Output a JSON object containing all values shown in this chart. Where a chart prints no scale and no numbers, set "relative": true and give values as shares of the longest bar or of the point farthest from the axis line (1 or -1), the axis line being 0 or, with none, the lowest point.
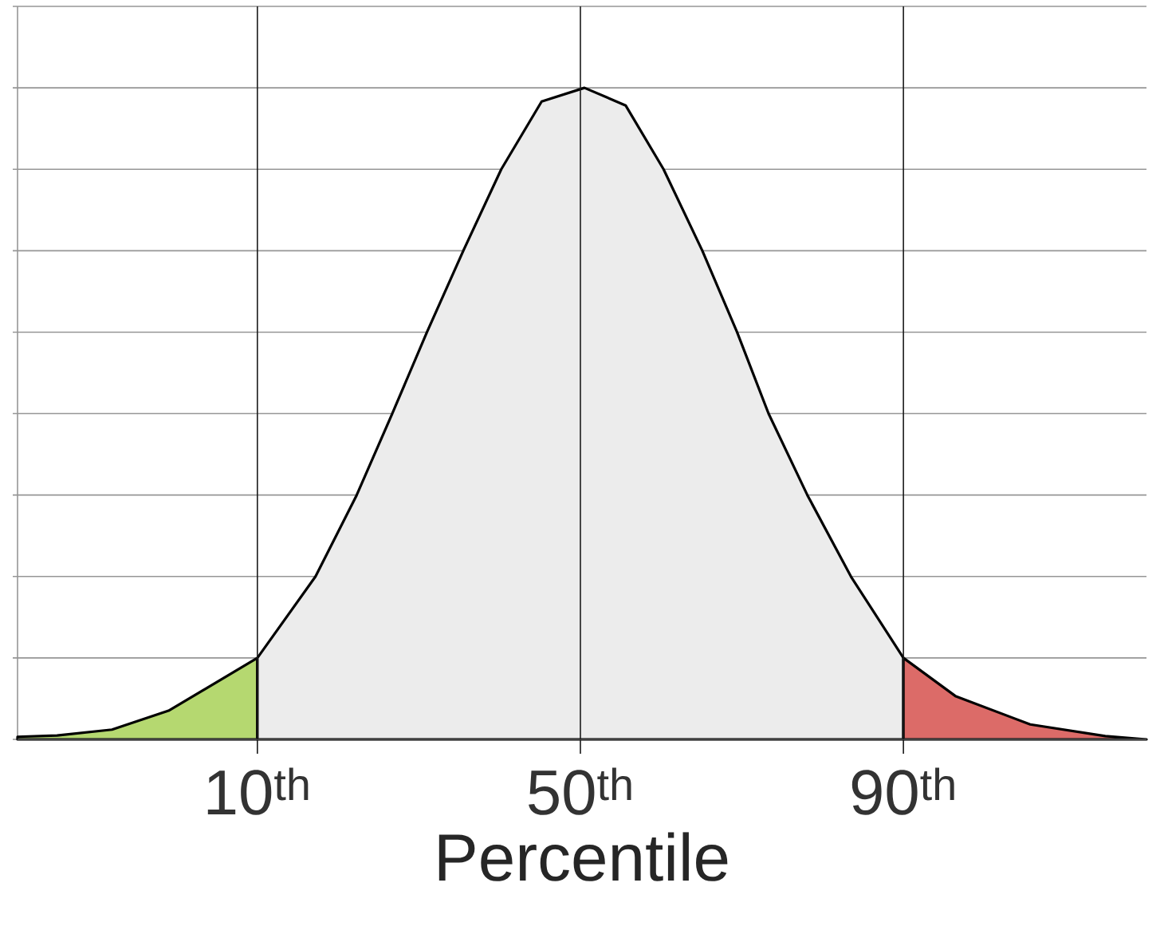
{
  "chart_data": {
    "type": "area",
    "relative": true,
    "xlabel": "Percentile",
    "xlim": [
      -19.7,
      120.1
    ],
    "xticks": [
      {
        "value": 10,
        "label": "10$^{th}$"
      },
      {
        "value": 50,
        "label": "50$^{th}$"
      },
      {
        "value": 90,
        "label": "90$^{th}$"
      }
    ],
    "tick_labels": "x",
    "grid": "y",
    "ref_lines": [
      {
        "axis": "x",
        "value": 10,
        "color": "#1a1a1a"
      },
      {
        "axis": "x",
        "value": 50,
        "color": "#1a1a1a"
      },
      {
        "axis": "x",
        "value": 90,
        "color": "#1a1a1a"
      }
    ],
    "series": [
      {
        "color": "#b5d870",
        "x": [
          -19.7,
          -14.8,
          -8.0,
          -1.0,
          10
        ],
        "values": [
          0.004,
          0.006,
          0.015,
          0.044,
          0.125
        ]
      },
      {
        "color": "#ececec",
        "x": [
          10,
          17.2,
          22.3,
          26.7,
          31.0,
          35.5,
          40.2,
          45.2,
          50.5,
          55.6,
          60.3,
          65.1,
          69.4,
          73.3,
          78.1,
          83.5,
          90
        ],
        "values": [
          0.125,
          0.25,
          0.375,
          0.5,
          0.625,
          0.75,
          0.875,
          0.979,
          1.0,
          0.973,
          0.875,
          0.75,
          0.625,
          0.5,
          0.375,
          0.25,
          0.125
        ]
      },
      {
        "color": "#dc6b68",
        "x": [
          90,
          96.5,
          105.7,
          115.0,
          120.1
        ],
        "values": [
          0.125,
          0.066,
          0.023,
          0.005,
          0
        ]
      }
    ]
  }
}
